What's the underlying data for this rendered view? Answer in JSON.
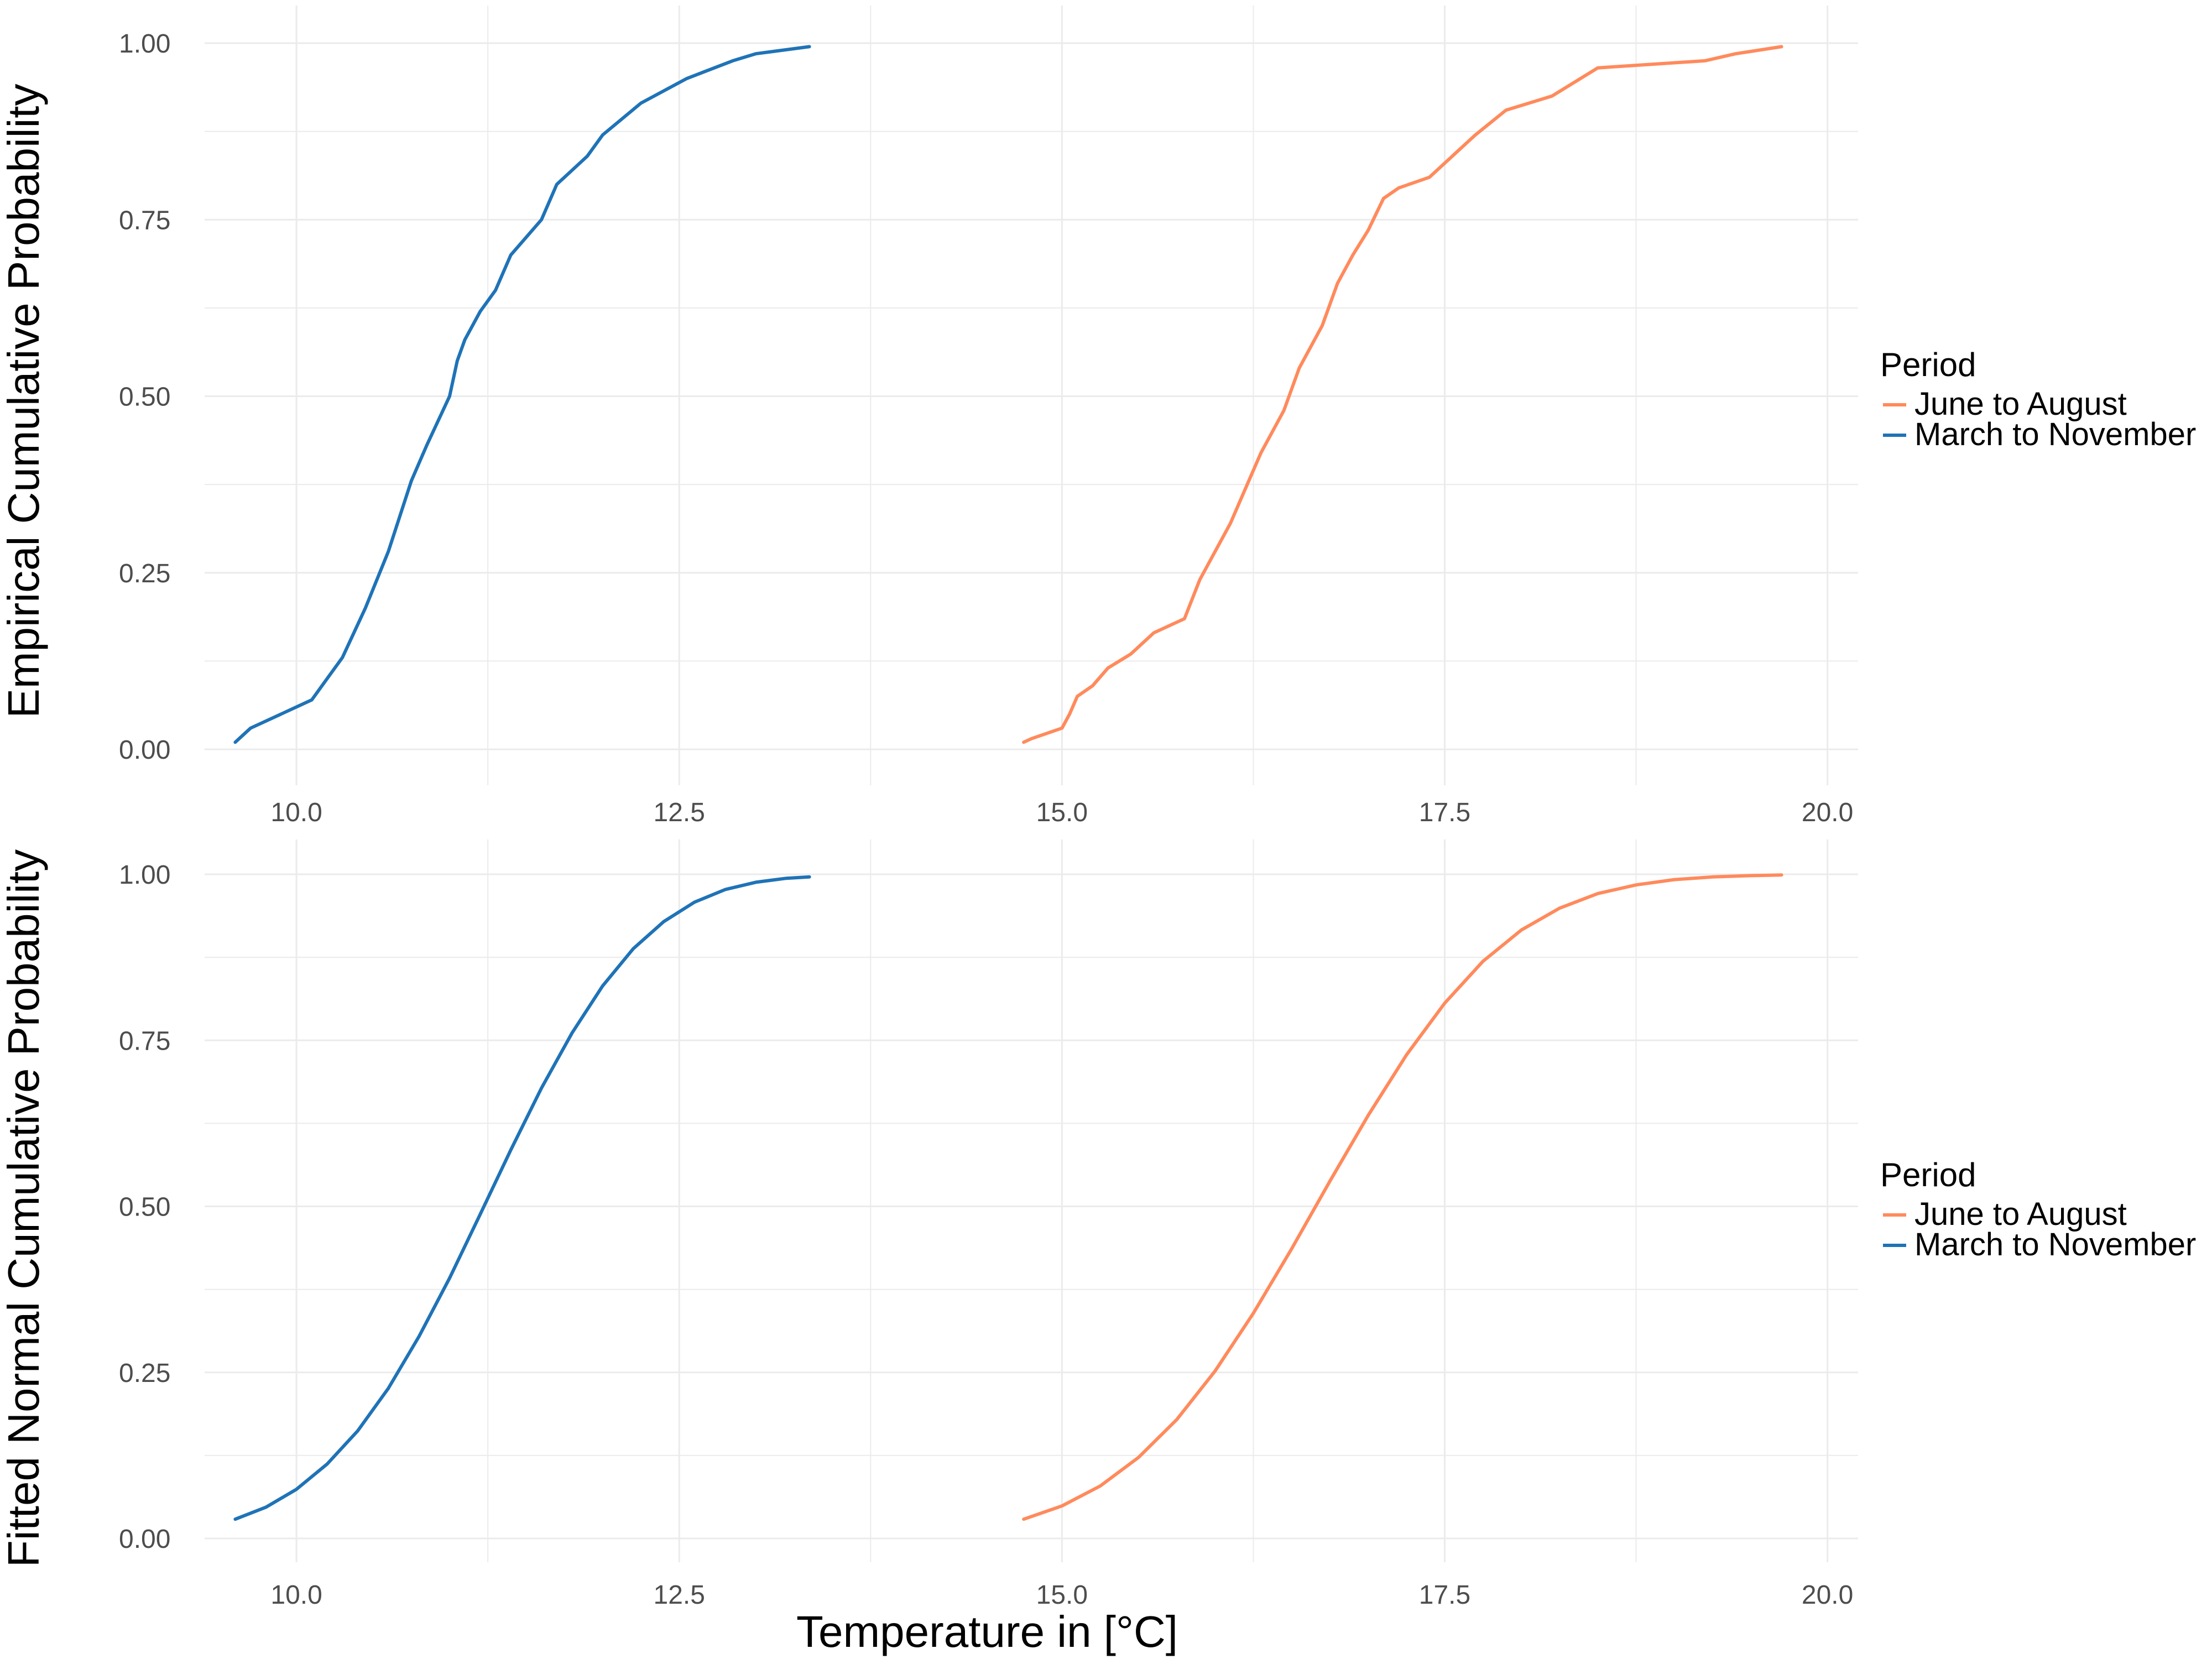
{
  "figure": {
    "xlabel": "Temperature in [°C]",
    "legend_title": "Period"
  },
  "colors": {
    "june_to_august": "#FF8A5C",
    "march_to_november": "#1F73B7",
    "grid": "#EBEBEB",
    "tick_text": "#4D4D4D"
  },
  "chart_data": [
    {
      "type": "line",
      "title": "",
      "xlabel": "",
      "ylabel": "Empirical Cumulative Probability",
      "xlim": [
        9.4,
        20.2
      ],
      "ylim": [
        0,
        1.0
      ],
      "x_ticks": [
        10.0,
        12.5,
        15.0,
        17.5,
        20.0
      ],
      "x_tick_labels": [
        "10.0",
        "12.5",
        "15.0",
        "17.5",
        "20.0"
      ],
      "y_ticks": [
        0.0,
        0.25,
        0.5,
        0.75,
        1.0
      ],
      "y_tick_labels": [
        "0.00",
        "0.25",
        "0.50",
        "0.75",
        "1.00"
      ],
      "grid": true,
      "legend": {
        "title": "Period",
        "placement": "right",
        "entries": [
          "June to August",
          "March to November"
        ]
      },
      "series": [
        {
          "name": "June to August",
          "color": "#FF8A5C",
          "x": [
            14.75,
            14.8,
            15.0,
            15.05,
            15.1,
            15.2,
            15.3,
            15.45,
            15.6,
            15.8,
            15.9,
            16.0,
            16.1,
            16.2,
            16.3,
            16.45,
            16.55,
            16.7,
            16.8,
            16.9,
            17.0,
            17.1,
            17.2,
            17.4,
            17.6,
            17.7,
            17.9,
            18.2,
            18.5,
            19.2,
            19.4,
            19.7
          ],
          "y": [
            0.01,
            0.015,
            0.03,
            0.05,
            0.075,
            0.09,
            0.115,
            0.135,
            0.165,
            0.185,
            0.24,
            0.28,
            0.32,
            0.37,
            0.42,
            0.48,
            0.54,
            0.6,
            0.66,
            0.7,
            0.735,
            0.78,
            0.795,
            0.81,
            0.85,
            0.87,
            0.905,
            0.925,
            0.965,
            0.975,
            0.985,
            0.995
          ]
        },
        {
          "name": "March to November",
          "color": "#1F73B7",
          "x": [
            9.6,
            9.65,
            9.7,
            9.9,
            10.1,
            10.2,
            10.3,
            10.45,
            10.6,
            10.75,
            10.85,
            11.0,
            11.05,
            11.1,
            11.2,
            11.3,
            11.4,
            11.6,
            11.7,
            11.9,
            12.0,
            12.25,
            12.55,
            12.85,
            13.0,
            13.35
          ],
          "y": [
            0.01,
            0.02,
            0.03,
            0.05,
            0.07,
            0.1,
            0.13,
            0.2,
            0.28,
            0.38,
            0.43,
            0.5,
            0.55,
            0.58,
            0.62,
            0.65,
            0.7,
            0.75,
            0.8,
            0.84,
            0.87,
            0.915,
            0.95,
            0.975,
            0.985,
            0.995
          ]
        }
      ]
    },
    {
      "type": "line",
      "title": "",
      "xlabel": "Temperature in [°C]",
      "ylabel": "Fitted Normal Cumulative Probability",
      "xlim": [
        9.4,
        20.2
      ],
      "ylim": [
        0,
        1.0
      ],
      "x_ticks": [
        10.0,
        12.5,
        15.0,
        17.5,
        20.0
      ],
      "x_tick_labels": [
        "10.0",
        "12.5",
        "15.0",
        "17.5",
        "20.0"
      ],
      "y_ticks": [
        0.0,
        0.25,
        0.5,
        0.75,
        1.0
      ],
      "y_tick_labels": [
        "0.00",
        "0.25",
        "0.50",
        "0.75",
        "1.00"
      ],
      "grid": true,
      "legend": {
        "title": "Period",
        "placement": "right",
        "entries": [
          "June to August",
          "March to November"
        ]
      },
      "series": [
        {
          "name": "June to August",
          "color": "#FF8A5C",
          "x": [
            14.75,
            15.0,
            15.25,
            15.5,
            15.75,
            16.0,
            16.25,
            16.5,
            16.75,
            17.0,
            17.25,
            17.5,
            17.75,
            18.0,
            18.25,
            18.5,
            18.75,
            19.0,
            19.25,
            19.5,
            19.7
          ],
          "y": [
            0.029,
            0.049,
            0.079,
            0.122,
            0.179,
            0.252,
            0.339,
            0.436,
            0.538,
            0.637,
            0.728,
            0.806,
            0.869,
            0.916,
            0.949,
            0.971,
            0.984,
            0.992,
            0.996,
            0.998,
            0.999
          ]
        },
        {
          "name": "March to November",
          "color": "#1F73B7",
          "x": [
            9.6,
            9.8,
            10.0,
            10.2,
            10.4,
            10.6,
            10.8,
            11.0,
            11.2,
            11.4,
            11.6,
            11.8,
            12.0,
            12.2,
            12.4,
            12.6,
            12.8,
            13.0,
            13.2,
            13.35
          ],
          "y": [
            0.029,
            0.047,
            0.074,
            0.112,
            0.162,
            0.226,
            0.304,
            0.392,
            0.488,
            0.585,
            0.678,
            0.761,
            0.832,
            0.888,
            0.929,
            0.958,
            0.977,
            0.988,
            0.994,
            0.996
          ]
        }
      ]
    }
  ]
}
